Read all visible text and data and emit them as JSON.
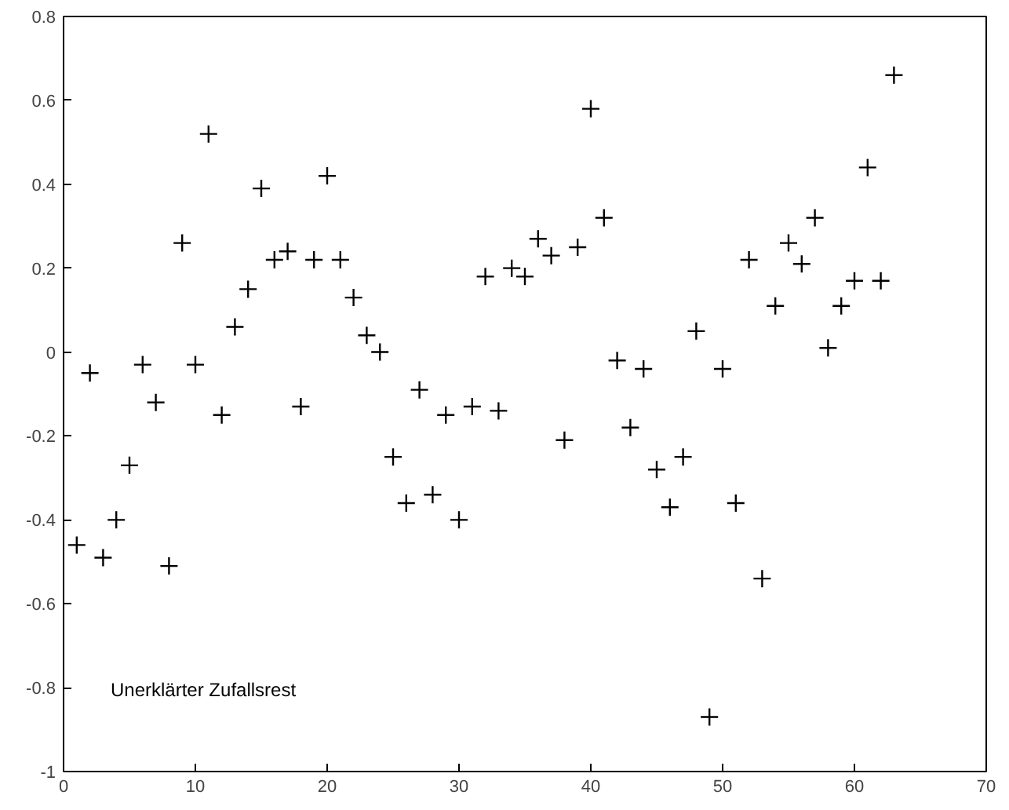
{
  "chart_data": {
    "type": "scatter",
    "marker": "cross",
    "grid": false,
    "x": [
      1,
      2,
      3,
      4,
      5,
      6,
      7,
      8,
      9,
      10,
      11,
      12,
      13,
      14,
      15,
      16,
      17,
      18,
      19,
      20,
      21,
      22,
      23,
      24,
      25,
      26,
      27,
      28,
      29,
      30,
      31,
      32,
      33,
      34,
      35,
      36,
      37,
      38,
      39,
      40,
      41,
      42,
      43,
      44,
      45,
      46,
      47,
      48,
      49,
      50,
      51,
      52,
      53,
      54,
      55,
      56,
      57,
      58,
      59,
      60,
      61,
      62,
      63
    ],
    "series": [
      {
        "color": "#000000",
        "values": [
          -0.46,
          -0.05,
          -0.49,
          -0.4,
          -0.27,
          -0.03,
          -0.12,
          -0.51,
          0.26,
          -0.03,
          0.52,
          -0.15,
          0.06,
          0.15,
          0.39,
          0.22,
          0.24,
          -0.13,
          0.22,
          0.42,
          0.22,
          0.13,
          0.04,
          0.0,
          -0.25,
          -0.36,
          -0.09,
          -0.34,
          -0.15,
          -0.4,
          -0.13,
          0.18,
          -0.14,
          0.2,
          0.18,
          0.27,
          0.23,
          -0.21,
          0.25,
          0.58,
          0.32,
          -0.02,
          -0.18,
          -0.04,
          -0.28,
          -0.37,
          -0.25,
          0.05,
          -0.87,
          -0.04,
          -0.36,
          0.22,
          -0.54,
          0.11,
          0.26,
          0.21,
          0.32,
          0.01,
          0.11,
          0.17,
          0.44,
          0.17,
          0.66
        ]
      }
    ],
    "xlim": [
      0,
      70
    ],
    "xticks": [
      0,
      10,
      20,
      30,
      40,
      50,
      60,
      70
    ],
    "ylim": [
      -1,
      0.8
    ],
    "yticks": [
      -1,
      -0.8,
      -0.6,
      -0.4,
      -0.2,
      0,
      0.2,
      0.4,
      0.6,
      0.8
    ],
    "annotations": [
      "Unerklärter Zufallsrest"
    ]
  }
}
